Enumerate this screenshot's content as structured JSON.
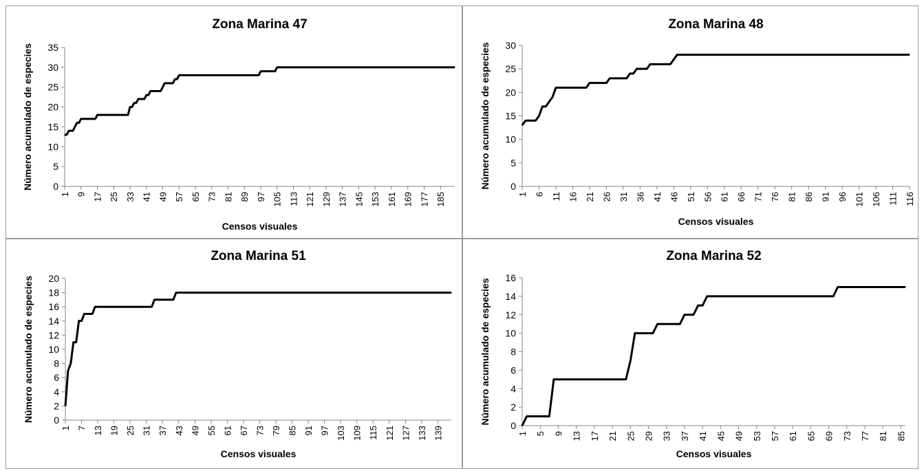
{
  "chart_data": [
    {
      "type": "line",
      "title": "Zona Marina 47",
      "xlabel": "Censos visuales",
      "ylabel": "Número acumulado de especies",
      "ylim": [
        0,
        35
      ],
      "yticks": [
        0,
        5,
        10,
        15,
        20,
        25,
        30,
        35
      ],
      "xlim": [
        1,
        192
      ],
      "xticks": [
        1,
        9,
        17,
        25,
        33,
        41,
        49,
        57,
        65,
        73,
        81,
        89,
        97,
        105,
        113,
        121,
        129,
        137,
        145,
        153,
        161,
        169,
        177,
        185
      ],
      "grid": false,
      "line_color": "#000000",
      "x": [
        1,
        2,
        3,
        4,
        5,
        6,
        7,
        8,
        9,
        10,
        11,
        12,
        13,
        14,
        15,
        16,
        17,
        18,
        19,
        20,
        21,
        22,
        23,
        24,
        25,
        26,
        27,
        28,
        29,
        30,
        31,
        32,
        33,
        34,
        35,
        36,
        37,
        38,
        39,
        40,
        41,
        42,
        43,
        44,
        45,
        46,
        47,
        48,
        49,
        50,
        51,
        52,
        53,
        54,
        55,
        56,
        57,
        58,
        59,
        60,
        61,
        62,
        63,
        64,
        65,
        66,
        67,
        68,
        69,
        70,
        71,
        72,
        73,
        74,
        75,
        76,
        77,
        78,
        79,
        80,
        81,
        82,
        83,
        84,
        85,
        86,
        87,
        88,
        89,
        90,
        91,
        92,
        93,
        94,
        95,
        96,
        97,
        98,
        99,
        100,
        101,
        102,
        103,
        104,
        105,
        106,
        107,
        108,
        109,
        110,
        111,
        112,
        113,
        114,
        115,
        116,
        117,
        118,
        119,
        120,
        121,
        122,
        123,
        124,
        125,
        126,
        127,
        128,
        129,
        130,
        131,
        132,
        133,
        134,
        135,
        136,
        137,
        138,
        139,
        140,
        141,
        142,
        143,
        144,
        145,
        146,
        147,
        148,
        149,
        150,
        151,
        152,
        153,
        154,
        155,
        156,
        157,
        158,
        159,
        160,
        161,
        162,
        163,
        164,
        165,
        166,
        167,
        168,
        169,
        170,
        171,
        172,
        173,
        174,
        175,
        176,
        177,
        178,
        179,
        180,
        181,
        182,
        183,
        184,
        185,
        186,
        187,
        188,
        189,
        190,
        191,
        192
      ],
      "y": [
        13,
        13,
        14,
        14,
        14,
        15,
        16,
        16,
        17,
        17,
        17,
        17,
        17,
        17,
        17,
        17,
        18,
        18,
        18,
        18,
        18,
        18,
        18,
        18,
        18,
        18,
        18,
        18,
        18,
        18,
        18,
        18,
        20,
        20,
        21,
        21,
        22,
        22,
        22,
        22,
        23,
        23,
        24,
        24,
        24,
        24,
        24,
        24,
        25,
        26,
        26,
        26,
        26,
        26,
        27,
        27,
        28,
        28,
        28,
        28,
        28,
        28,
        28,
        28,
        28,
        28,
        28,
        28,
        28,
        28,
        28,
        28,
        28,
        28,
        28,
        28,
        28,
        28,
        28,
        28,
        28,
        28,
        28,
        28,
        28,
        28,
        28,
        28,
        28,
        28,
        28,
        28,
        28,
        28,
        28,
        28,
        29,
        29,
        29,
        29,
        29,
        29,
        29,
        29,
        30,
        30,
        30,
        30,
        30,
        30,
        30,
        30,
        30,
        30,
        30,
        30,
        30,
        30,
        30,
        30,
        30,
        30,
        30,
        30,
        30,
        30,
        30,
        30,
        30,
        30,
        30,
        30,
        30,
        30,
        30,
        30,
        30,
        30,
        30,
        30,
        30,
        30,
        30,
        30,
        30,
        30,
        30,
        30,
        30,
        30,
        30,
        30,
        30,
        30,
        30,
        30,
        30,
        30,
        30,
        30,
        30,
        30,
        30,
        30,
        30,
        30,
        30,
        30,
        30,
        30,
        30,
        30,
        30,
        30,
        30,
        30,
        30,
        30,
        30,
        30,
        30,
        30,
        30,
        30,
        30,
        30,
        30,
        30,
        30,
        30,
        30,
        30
      ]
    },
    {
      "type": "line",
      "title": "Zona Marina 48",
      "xlabel": "Censos visuales",
      "ylabel": "Número acumulado de especies",
      "ylim": [
        0,
        30
      ],
      "yticks": [
        0,
        5,
        10,
        15,
        20,
        25,
        30
      ],
      "xlim": [
        1,
        116
      ],
      "xticks": [
        1,
        6,
        11,
        16,
        21,
        26,
        31,
        36,
        41,
        46,
        51,
        56,
        61,
        66,
        71,
        76,
        81,
        86,
        91,
        96,
        101,
        106,
        111,
        116
      ],
      "grid": false,
      "line_color": "#000000",
      "x": [
        1,
        2,
        3,
        4,
        5,
        6,
        7,
        8,
        9,
        10,
        11,
        12,
        13,
        14,
        15,
        16,
        17,
        18,
        19,
        20,
        21,
        22,
        23,
        24,
        25,
        26,
        27,
        28,
        29,
        30,
        31,
        32,
        33,
        34,
        35,
        36,
        37,
        38,
        39,
        40,
        41,
        42,
        43,
        44,
        45,
        46,
        47,
        48,
        49,
        50,
        51,
        52,
        53,
        54,
        55,
        56,
        57,
        58,
        59,
        60,
        61,
        62,
        63,
        64,
        65,
        66,
        67,
        68,
        69,
        70,
        71,
        72,
        73,
        74,
        75,
        76,
        77,
        78,
        79,
        80,
        81,
        82,
        83,
        84,
        85,
        86,
        87,
        88,
        89,
        90,
        91,
        92,
        93,
        94,
        95,
        96,
        97,
        98,
        99,
        100,
        101,
        102,
        103,
        104,
        105,
        106,
        107,
        108,
        109,
        110,
        111,
        112,
        113,
        114,
        115,
        116
      ],
      "y": [
        13,
        14,
        14,
        14,
        14,
        15,
        17,
        17,
        18,
        19,
        21,
        21,
        21,
        21,
        21,
        21,
        21,
        21,
        21,
        21,
        22,
        22,
        22,
        22,
        22,
        22,
        23,
        23,
        23,
        23,
        23,
        23,
        24,
        24,
        25,
        25,
        25,
        25,
        26,
        26,
        26,
        26,
        26,
        26,
        26,
        27,
        28,
        28,
        28,
        28,
        28,
        28,
        28,
        28,
        28,
        28,
        28,
        28,
        28,
        28,
        28,
        28,
        28,
        28,
        28,
        28,
        28,
        28,
        28,
        28,
        28,
        28,
        28,
        28,
        28,
        28,
        28,
        28,
        28,
        28,
        28,
        28,
        28,
        28,
        28,
        28,
        28,
        28,
        28,
        28,
        28,
        28,
        28,
        28,
        28,
        28,
        28,
        28,
        28,
        28,
        28,
        28,
        28,
        28,
        28,
        28,
        28,
        28,
        28,
        28,
        28,
        28,
        28,
        28,
        28,
        28
      ]
    },
    {
      "type": "line",
      "title": "Zona Marina 51",
      "xlabel": "Censos visuales",
      "ylabel": "Número acumulado de especies",
      "ylim": [
        0,
        20
      ],
      "yticks": [
        0,
        2,
        4,
        6,
        8,
        10,
        12,
        14,
        16,
        18,
        20
      ],
      "xlim": [
        1,
        144
      ],
      "xticks": [
        1,
        7,
        13,
        19,
        25,
        31,
        37,
        43,
        49,
        55,
        61,
        67,
        73,
        79,
        85,
        91,
        97,
        103,
        109,
        115,
        121,
        127,
        133,
        139
      ],
      "grid": false,
      "line_color": "#000000",
      "x": [
        1,
        2,
        3,
        4,
        5,
        6,
        7,
        8,
        9,
        10,
        11,
        12,
        13,
        14,
        15,
        16,
        17,
        18,
        19,
        20,
        21,
        22,
        23,
        24,
        25,
        26,
        27,
        28,
        29,
        30,
        31,
        32,
        33,
        34,
        35,
        36,
        37,
        38,
        39,
        40,
        41,
        42,
        43,
        44,
        45,
        46,
        47,
        48,
        49,
        50,
        51,
        52,
        53,
        54,
        55,
        56,
        57,
        58,
        59,
        60,
        61,
        62,
        63,
        64,
        65,
        66,
        67,
        68,
        69,
        70,
        71,
        72,
        73,
        74,
        75,
        76,
        77,
        78,
        79,
        80,
        81,
        82,
        83,
        84,
        85,
        86,
        87,
        88,
        89,
        90,
        91,
        92,
        93,
        94,
        95,
        96,
        97,
        98,
        99,
        100,
        101,
        102,
        103,
        104,
        105,
        106,
        107,
        108,
        109,
        110,
        111,
        112,
        113,
        114,
        115,
        116,
        117,
        118,
        119,
        120,
        121,
        122,
        123,
        124,
        125,
        126,
        127,
        128,
        129,
        130,
        131,
        132,
        133,
        134,
        135,
        136,
        137,
        138,
        139,
        140,
        141,
        142,
        143,
        144
      ],
      "y": [
        2,
        7,
        8,
        11,
        11,
        14,
        14,
        15,
        15,
        15,
        15,
        16,
        16,
        16,
        16,
        16,
        16,
        16,
        16,
        16,
        16,
        16,
        16,
        16,
        16,
        16,
        16,
        16,
        16,
        16,
        16,
        16,
        16,
        17,
        17,
        17,
        17,
        17,
        17,
        17,
        17,
        18,
        18,
        18,
        18,
        18,
        18,
        18,
        18,
        18,
        18,
        18,
        18,
        18,
        18,
        18,
        18,
        18,
        18,
        18,
        18,
        18,
        18,
        18,
        18,
        18,
        18,
        18,
        18,
        18,
        18,
        18,
        18,
        18,
        18,
        18,
        18,
        18,
        18,
        18,
        18,
        18,
        18,
        18,
        18,
        18,
        18,
        18,
        18,
        18,
        18,
        18,
        18,
        18,
        18,
        18,
        18,
        18,
        18,
        18,
        18,
        18,
        18,
        18,
        18,
        18,
        18,
        18,
        18,
        18,
        18,
        18,
        18,
        18,
        18,
        18,
        18,
        18,
        18,
        18,
        18,
        18,
        18,
        18,
        18,
        18,
        18,
        18,
        18,
        18,
        18,
        18,
        18,
        18,
        18,
        18,
        18,
        18,
        18,
        18,
        18,
        18,
        18,
        18
      ]
    },
    {
      "type": "line",
      "title": "Zona Marina 52",
      "xlabel": "Censos visuales",
      "ylabel": "Número acumulado de especies",
      "ylim": [
        0,
        16
      ],
      "yticks": [
        0,
        2,
        4,
        6,
        8,
        10,
        12,
        14,
        16
      ],
      "xlim": [
        1,
        86
      ],
      "xticks": [
        1,
        5,
        9,
        13,
        17,
        21,
        25,
        29,
        33,
        37,
        41,
        45,
        49,
        53,
        57,
        61,
        65,
        69,
        73,
        77,
        81,
        85
      ],
      "grid": false,
      "line_color": "#000000",
      "x": [
        1,
        2,
        3,
        4,
        5,
        6,
        7,
        8,
        9,
        10,
        11,
        12,
        13,
        14,
        15,
        16,
        17,
        18,
        19,
        20,
        21,
        22,
        23,
        24,
        25,
        26,
        27,
        28,
        29,
        30,
        31,
        32,
        33,
        34,
        35,
        36,
        37,
        38,
        39,
        40,
        41,
        42,
        43,
        44,
        45,
        46,
        47,
        48,
        49,
        50,
        51,
        52,
        53,
        54,
        55,
        56,
        57,
        58,
        59,
        60,
        61,
        62,
        63,
        64,
        65,
        66,
        67,
        68,
        69,
        70,
        71,
        72,
        73,
        74,
        75,
        76,
        77,
        78,
        79,
        80,
        81,
        82,
        83,
        84,
        85,
        86
      ],
      "y": [
        0,
        1,
        1,
        1,
        1,
        1,
        1,
        5,
        5,
        5,
        5,
        5,
        5,
        5,
        5,
        5,
        5,
        5,
        5,
        5,
        5,
        5,
        5,
        5,
        7,
        10,
        10,
        10,
        10,
        10,
        11,
        11,
        11,
        11,
        11,
        11,
        12,
        12,
        12,
        13,
        13,
        14,
        14,
        14,
        14,
        14,
        14,
        14,
        14,
        14,
        14,
        14,
        14,
        14,
        14,
        14,
        14,
        14,
        14,
        14,
        14,
        14,
        14,
        14,
        14,
        14,
        14,
        14,
        14,
        14,
        15,
        15,
        15,
        15,
        15,
        15,
        15,
        15,
        15,
        15,
        15,
        15,
        15,
        15,
        15,
        15
      ]
    }
  ]
}
